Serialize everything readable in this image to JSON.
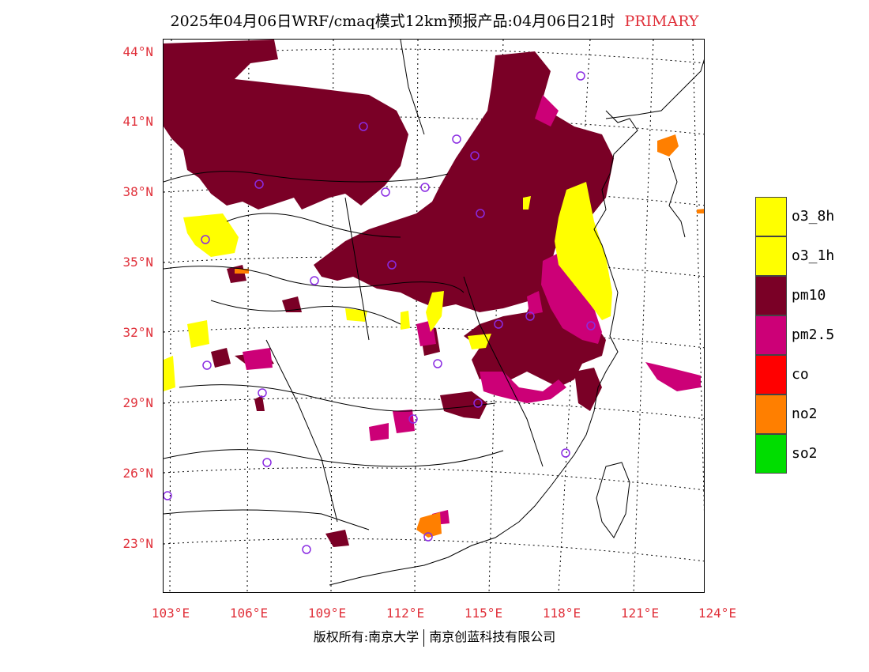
{
  "title": {
    "text": "2025年04月06日WRF/cmaq模式12km预报产品:04月06日21时",
    "tag": "PRIMARY"
  },
  "colors": {
    "o3_8h": "#ffff00",
    "o3_1h": "#ffff00",
    "pm10": "#7a0026",
    "pm2_5": "#cc0077",
    "co": "#ff0000",
    "no2": "#ff7f00",
    "so2": "#00dd00",
    "station_marker": "#8a2be2",
    "axis_label": "#e0303a"
  },
  "axes": {
    "y_ticks": [
      "44°N",
      "41°N",
      "38°N",
      "35°N",
      "32°N",
      "29°N",
      "26°N",
      "23°N"
    ],
    "x_ticks": [
      "103°E",
      "106°E",
      "109°E",
      "112°E",
      "115°E",
      "118°E",
      "121°E",
      "124°E"
    ]
  },
  "legend": [
    {
      "label": "o3_8h",
      "color": "#ffff00"
    },
    {
      "label": "o3_1h",
      "color": "#ffff00"
    },
    {
      "label": "pm10",
      "color": "#7a0026"
    },
    {
      "label": "pm2.5",
      "color": "#cc0077"
    },
    {
      "label": "co",
      "color": "#ff0000"
    },
    {
      "label": "no2",
      "color": "#ff7f00"
    },
    {
      "label": "so2",
      "color": "#00dd00"
    }
  ],
  "copyright": {
    "left": "版权所有:南京大学",
    "right": "南京创蓝科技有限公司"
  }
}
